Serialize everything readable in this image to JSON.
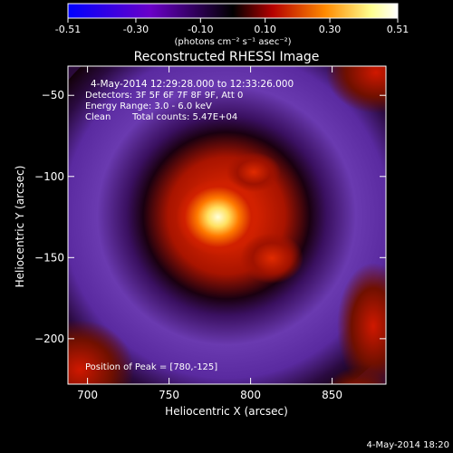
{
  "chart_data": {
    "type": "heatmap",
    "title": "Reconstructed RHESSI Image",
    "xlabel": "Heliocentric X (arcsec)",
    "ylabel": "Heliocentric Y (arcsec)",
    "xlim": [
      688,
      883
    ],
    "ylim": [
      -228,
      -32
    ],
    "xticks": [
      700,
      750,
      800,
      850
    ],
    "yticks": [
      -50,
      -100,
      -150,
      -200
    ],
    "colorbar": {
      "range": [
        -0.51,
        0.51
      ],
      "ticks": [
        "-0.51",
        "-0.30",
        "-0.10",
        "0.10",
        "0.30",
        "0.51"
      ],
      "tick_values": [
        -0.51,
        -0.3,
        -0.1,
        0.1,
        0.3,
        0.51
      ],
      "unit_label": "(photons cm⁻² s⁻¹ asec⁻²)",
      "colors": [
        "#0000ff",
        "#6a00c8",
        "#000000",
        "#b40000",
        "#ff8a00",
        "#ffff90",
        "#ffffff"
      ]
    },
    "peak": [
      780,
      -125
    ],
    "annotations": {
      "time_range": "4-May-2014 12:29:28.000 to 12:33:26.000",
      "detectors": "Detectors: 3F 5F 6F 7F 8F 9F, Att 0",
      "energy": "Energy Range: 3.0 - 6.0 keV",
      "method": "Clean",
      "counts": "Total counts: 5.47E+04",
      "peak_label": "Position of Peak = [780,-125]"
    }
  },
  "footer": {
    "timestamp": "4-May-2014 18:20"
  }
}
